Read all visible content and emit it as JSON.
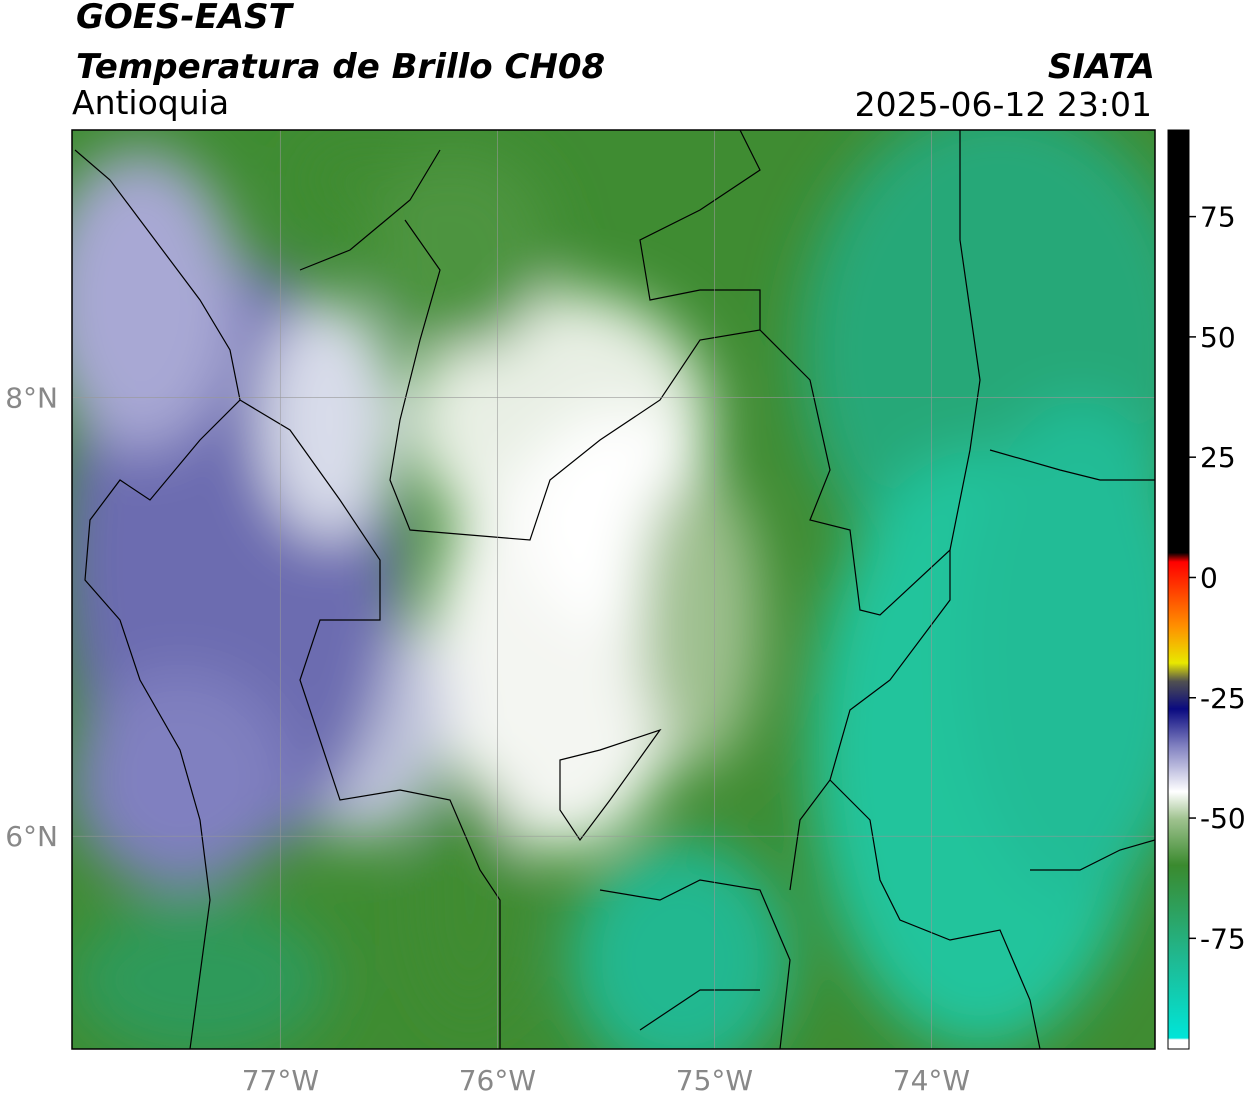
{
  "header": {
    "title": "GOES-EAST",
    "subtitle": "Temperatura de Brillo CH08",
    "region": "Antioquia",
    "source": "SIATA",
    "datetime": "2025-06-12 23:01"
  },
  "map": {
    "xlim": [
      -77.96,
      -72.97
    ],
    "ylim": [
      5.03,
      9.22
    ],
    "xticks": [
      {
        "value": -77,
        "label": "77°W"
      },
      {
        "value": -76,
        "label": "76°W"
      },
      {
        "value": -75,
        "label": "75°W"
      },
      {
        "value": -74,
        "label": "74°W"
      }
    ],
    "yticks": [
      {
        "value": 8,
        "label": "8°N"
      },
      {
        "value": 6,
        "label": "6°N"
      }
    ],
    "grid": true
  },
  "colorbar": {
    "lim": [
      -98,
      93
    ],
    "ticks": [
      75,
      50,
      25,
      0,
      -25,
      -50,
      -75
    ]
  }
}
